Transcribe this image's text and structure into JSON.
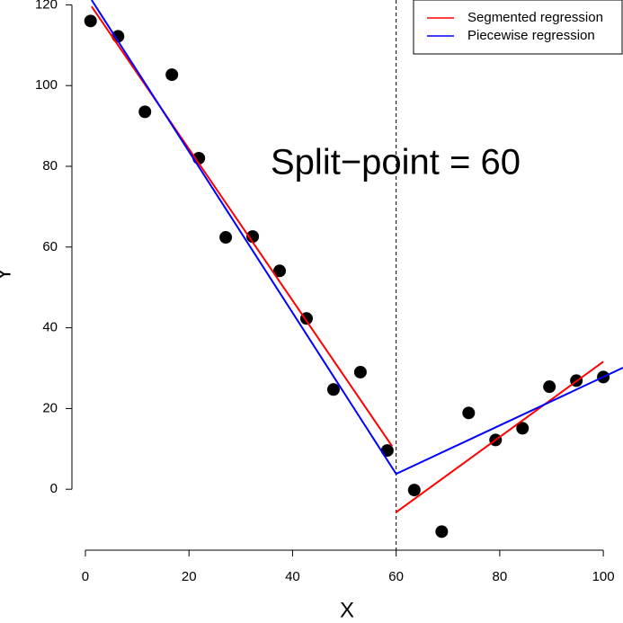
{
  "chart_data": {
    "type": "scatter",
    "annotation": "Split−point = 60",
    "x_label": "X",
    "y_label": "Y",
    "vline": 60,
    "points": {
      "color": "#000000",
      "x": [
        1.0,
        6.3,
        11.5,
        16.7,
        21.9,
        27.1,
        32.3,
        37.5,
        42.7,
        47.9,
        53.1,
        58.3,
        63.5,
        68.8,
        74.0,
        79.2,
        84.4,
        89.6,
        94.8,
        100.0
      ],
      "values": [
        116.0,
        112.2,
        93.5,
        102.7,
        82.0,
        62.4,
        62.6,
        54.1,
        42.3,
        24.7,
        29.0,
        9.6,
        -0.2,
        -10.5,
        18.9,
        12.2,
        15.1,
        25.4,
        26.9,
        27.8
      ]
    },
    "series": [
      {
        "name": "Segmented regression",
        "color": "#ff0000",
        "x": [
          1.2,
          59.2,
          null,
          59.9,
          100.0
        ],
        "values": [
          119.6,
          10.7,
          null,
          -5.8,
          31.6
        ]
      },
      {
        "name": "Piecewise regression",
        "color": "#0000ff",
        "x": [
          1.2,
          60.0,
          103.8
        ],
        "values": [
          121.2,
          3.8,
          30.1
        ]
      }
    ],
    "xlim": [
      -2.6,
      103.8
    ],
    "ylim": [
      -15.1,
      121.2
    ],
    "xticks": [
      0,
      20,
      40,
      60,
      80,
      100
    ],
    "yticks": [
      0,
      20,
      40,
      60,
      80,
      100,
      120
    ],
    "legend": "top-right"
  }
}
